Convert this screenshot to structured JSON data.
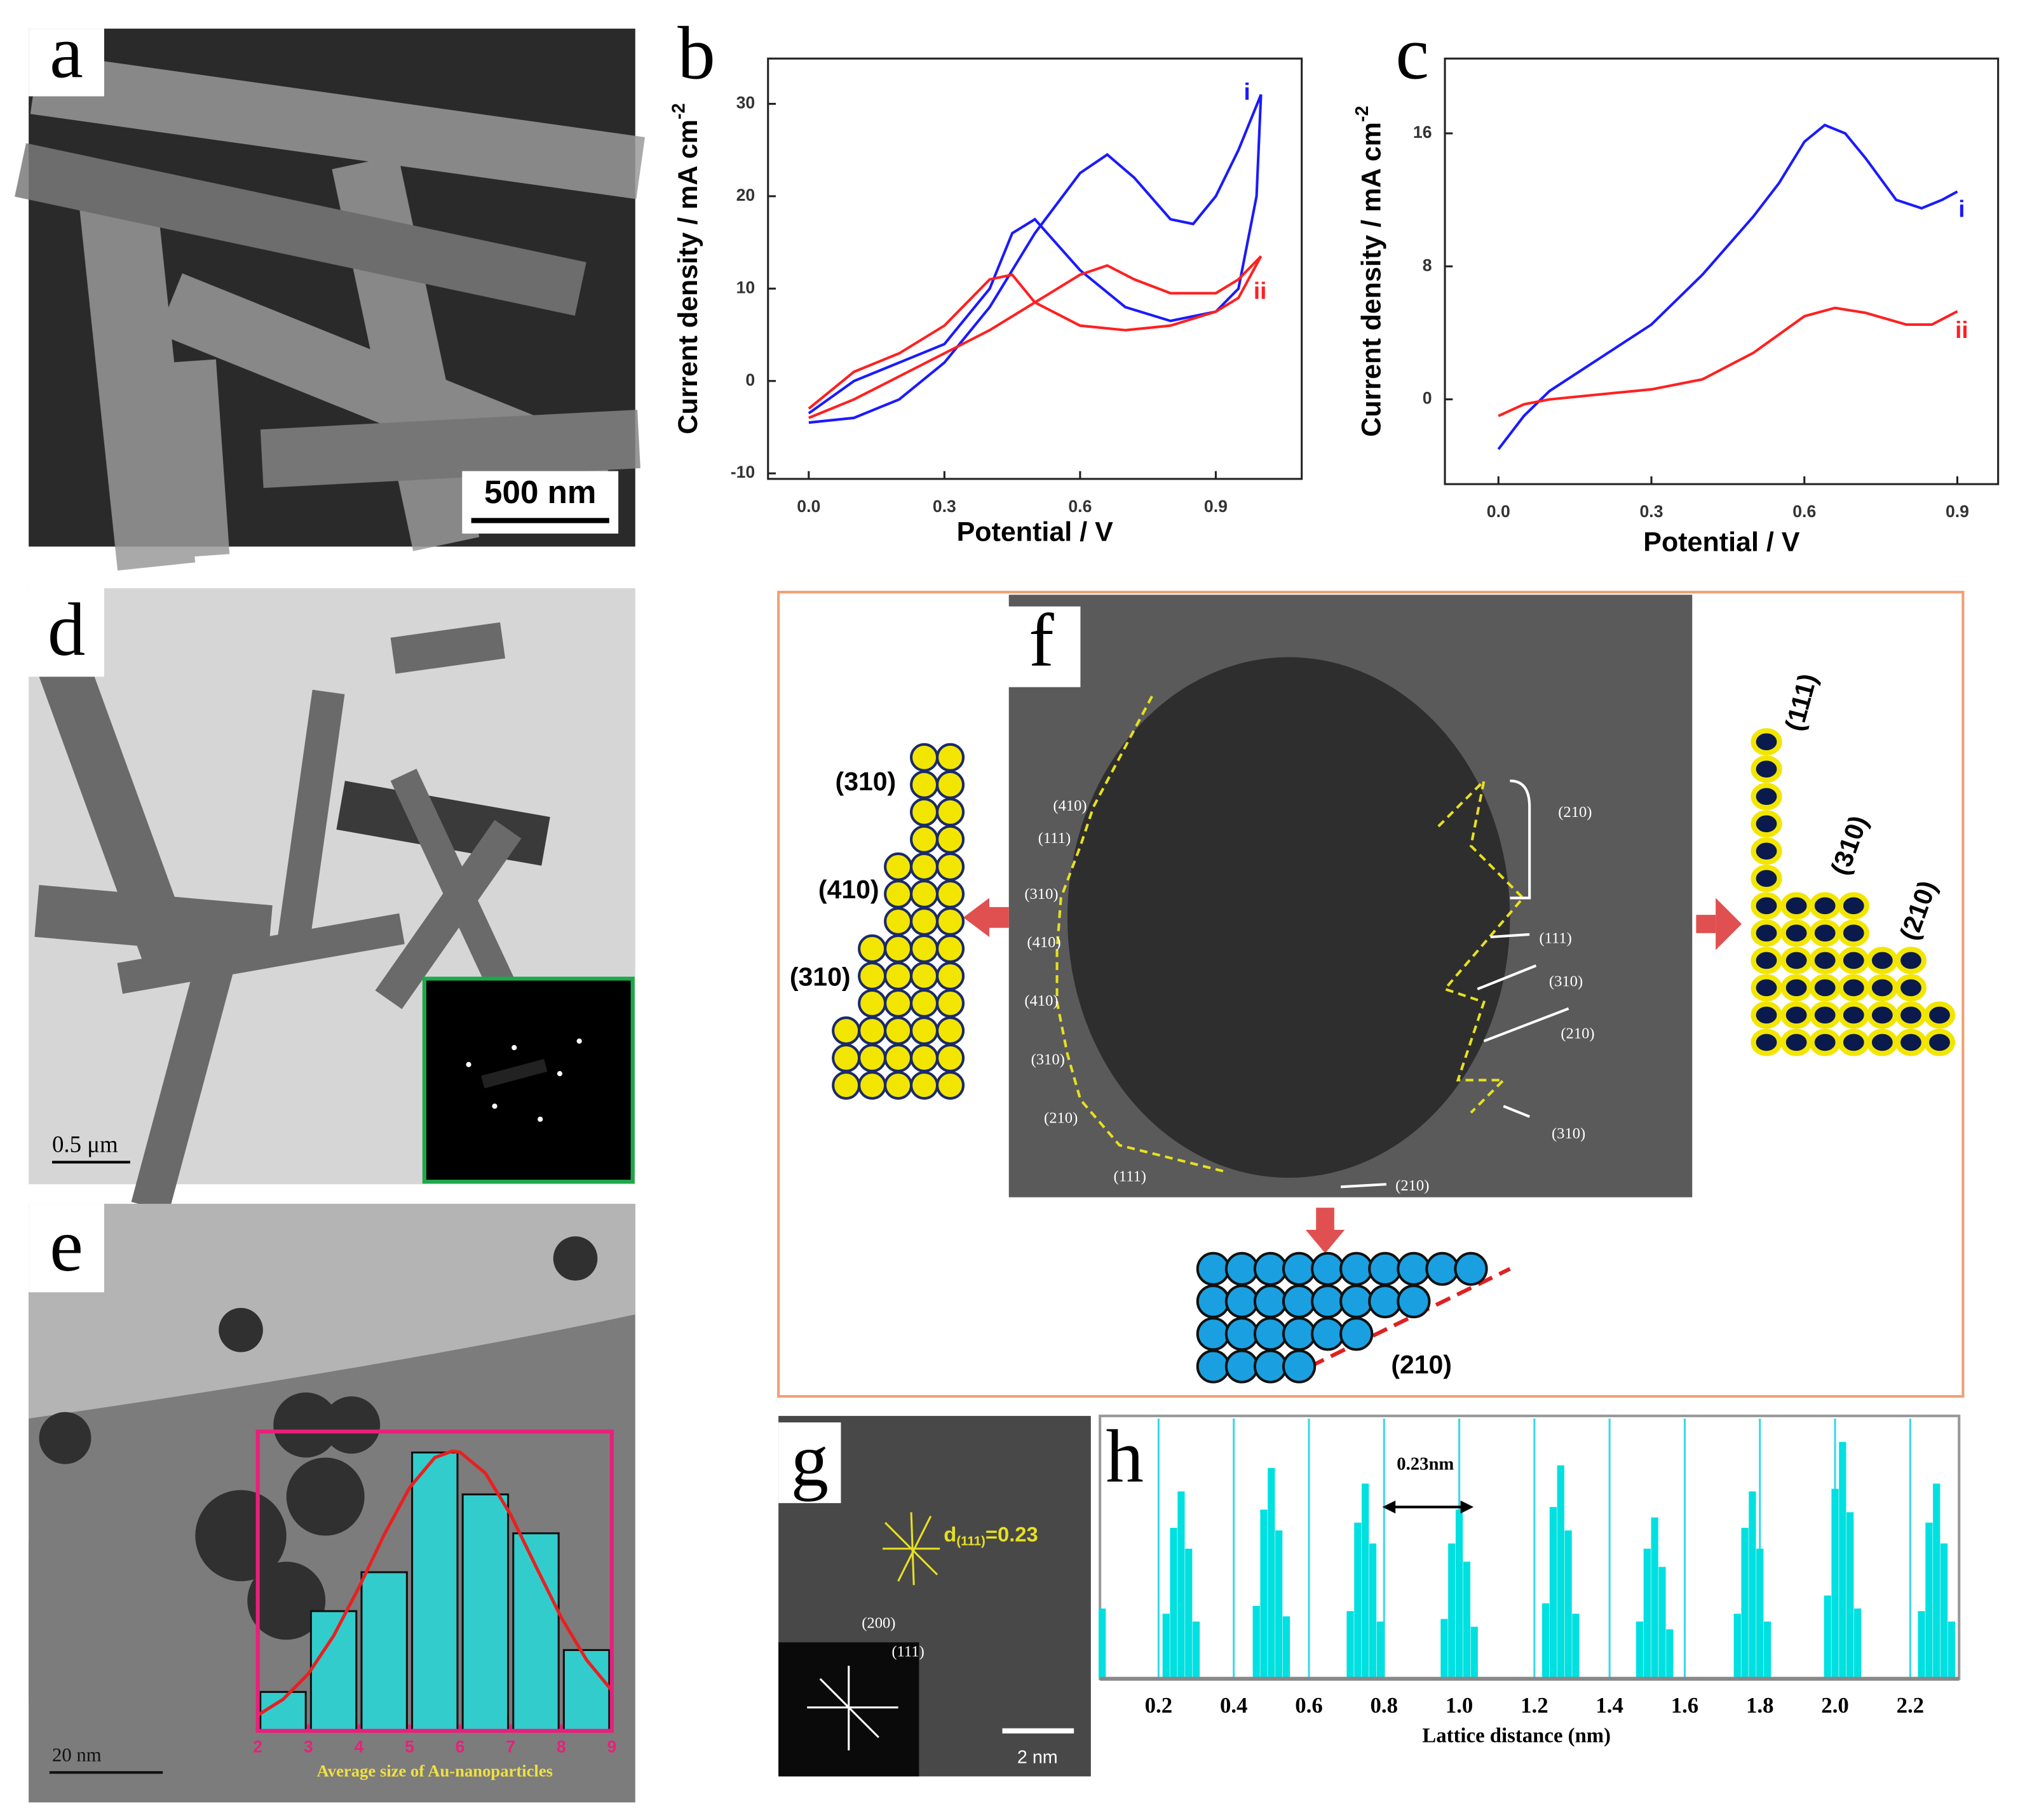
{
  "panels": {
    "a": {
      "label": "a",
      "scale": "500 nm"
    },
    "b": {
      "label": "b"
    },
    "c": {
      "label": "c"
    },
    "d": {
      "label": "d",
      "scale": "0.5 μm"
    },
    "e": {
      "label": "e",
      "scale": "20 nm"
    },
    "f": {
      "label": "f",
      "image_labels": [
        "(410)",
        "(111)",
        "(310)",
        "(410)",
        "(410)",
        "(310)",
        "(210)",
        "(111)",
        "(210)",
        "(111)",
        "(310)",
        "(210)",
        "(310)",
        "(210)"
      ],
      "left_model": [
        "(310)",
        "(410)",
        "(310)"
      ],
      "right_model": [
        "(111)",
        "(310)",
        "(210)"
      ],
      "bottom_model": "(210)"
    },
    "g": {
      "label": "g",
      "d": "d",
      "d_sub": "(111)",
      "d_rest": "=0.23",
      "fft_labels": [
        "(200)",
        "(111)"
      ],
      "scale": "2 nm"
    },
    "h": {
      "label": "h"
    }
  },
  "chart_data": [
    {
      "type": "line",
      "xlabel": "Potential / V",
      "ylabel": "Current density / mA cm",
      "ylabel_sup": "-2",
      "xlim": [
        -0.09,
        1.09
      ],
      "ylim": [
        -10.6,
        34.9
      ],
      "xticks": [
        {
          "value": 0,
          "label": "0.0"
        },
        0.3,
        0.6,
        0.9
      ],
      "yticks": [
        -10,
        0,
        10,
        20,
        30
      ],
      "series": [
        {
          "name": "i",
          "color": "#1a1aff",
          "x": [
            0,
            0.1,
            0.2,
            0.3,
            0.4,
            0.5,
            0.6,
            0.66,
            0.72,
            0.8,
            0.85,
            0.9,
            0.95,
            1.0,
            0.99,
            0.95,
            0.9,
            0.8,
            0.7,
            0.6,
            0.5,
            0.45,
            0.4,
            0.3,
            0.2,
            0.1,
            0.0
          ],
          "values": [
            -4.5,
            -4,
            -2,
            2,
            8,
            16,
            22.5,
            24.5,
            22,
            17.5,
            17,
            20,
            25,
            31,
            20,
            10,
            7.5,
            6.5,
            8,
            12,
            17.5,
            16,
            10,
            4,
            2,
            0,
            -3.5
          ]
        },
        {
          "name": "ii",
          "color": "#ff2020",
          "x": [
            0,
            0.1,
            0.2,
            0.3,
            0.4,
            0.5,
            0.6,
            0.66,
            0.72,
            0.8,
            0.9,
            0.95,
            1.0,
            0.95,
            0.9,
            0.8,
            0.7,
            0.6,
            0.5,
            0.45,
            0.4,
            0.3,
            0.2,
            0.1,
            0.0
          ],
          "values": [
            -4,
            -2,
            0.5,
            3,
            5.5,
            8.5,
            11.5,
            12.5,
            11,
            9.5,
            9.5,
            11,
            13.5,
            9,
            7.5,
            6,
            5.5,
            6,
            8.5,
            11.5,
            11,
            6,
            3,
            1,
            -3
          ]
        }
      ]
    },
    {
      "type": "line",
      "xlabel": "Potential / V",
      "ylabel": "Current density / mA cm",
      "ylabel_sup": "-2",
      "xlim": [
        -0.105,
        0.98
      ],
      "ylim": [
        -5.1,
        20.5
      ],
      "xticks": [
        {
          "value": 0,
          "label": "0.0"
        },
        0.3,
        0.6,
        0.9
      ],
      "yticks": [
        0,
        8,
        16
      ],
      "series": [
        {
          "name": "i",
          "color": "#1a1aff",
          "x": [
            0,
            0.05,
            0.1,
            0.2,
            0.3,
            0.4,
            0.5,
            0.55,
            0.6,
            0.64,
            0.68,
            0.72,
            0.78,
            0.83,
            0.87,
            0.9
          ],
          "values": [
            -3,
            -1,
            0.5,
            2.5,
            4.5,
            7.5,
            11,
            13,
            15.5,
            16.5,
            16,
            14.5,
            12,
            11.5,
            12,
            12.5
          ]
        },
        {
          "name": "ii",
          "color": "#ff2020",
          "x": [
            0,
            0.05,
            0.1,
            0.2,
            0.3,
            0.4,
            0.5,
            0.6,
            0.66,
            0.72,
            0.8,
            0.85,
            0.9
          ],
          "values": [
            -1,
            -0.3,
            0,
            0.3,
            0.6,
            1.2,
            2.8,
            5,
            5.5,
            5.2,
            4.5,
            4.5,
            5.3
          ]
        }
      ]
    },
    {
      "type": "histogram",
      "xlabel": "Average size of Au-nanoparticles",
      "bins": [
        2,
        3,
        4,
        5,
        6,
        7,
        8,
        9
      ],
      "counts": [
        13,
        40,
        53,
        93,
        79,
        66,
        27
      ],
      "color": "#33cccc",
      "xlim": [
        2,
        9
      ],
      "ylim": [
        0,
        100
      ],
      "xticks": [
        2,
        3,
        4,
        5,
        6,
        7,
        8,
        9
      ],
      "fit": {
        "color": "#e82020",
        "x": [
          2,
          2.5,
          3,
          3.5,
          4,
          4.5,
          5,
          5.5,
          5.85,
          6,
          6.5,
          7,
          7.5,
          8,
          8.5,
          9
        ],
        "values": [
          5.2,
          10.5,
          19.1,
          31.8,
          47.9,
          65.5,
          81.2,
          91.3,
          93.5,
          93.1,
          86.1,
          72.2,
          54.9,
          37.9,
          23.7,
          13.5
        ]
      }
    },
    {
      "type": "bar",
      "xlabel": "Lattice distance (nm)",
      "annotation": "0.23nm",
      "color": "#00e0e0",
      "grid": true,
      "xlim": [
        0.044,
        2.33
      ],
      "ylim": [
        0,
        100
      ],
      "xticks": [
        0.2,
        0.4,
        0.6,
        0.8,
        {
          "value": 1,
          "label": "1.0"
        },
        1.2,
        1.4,
        1.6,
        1.8,
        {
          "value": 2,
          "label": "2.0"
        },
        2.2
      ],
      "x": [
        0.05,
        0.22,
        0.24,
        0.26,
        0.28,
        0.3,
        0.46,
        0.48,
        0.5,
        0.52,
        0.54,
        0.71,
        0.73,
        0.75,
        0.77,
        0.79,
        0.96,
        0.98,
        1.0,
        1.02,
        1.04,
        1.23,
        1.25,
        1.27,
        1.29,
        1.31,
        1.48,
        1.5,
        1.52,
        1.54,
        1.56,
        1.74,
        1.76,
        1.78,
        1.8,
        1.82,
        1.98,
        2.0,
        2.02,
        2.04,
        2.06,
        2.23,
        2.25,
        2.27,
        2.29,
        2.31
      ],
      "values": [
        27,
        25,
        58,
        72,
        50,
        22,
        28,
        65,
        81,
        57,
        24,
        26,
        60,
        75,
        52,
        22,
        23,
        52,
        65,
        45,
        20,
        29,
        66,
        82,
        57,
        25,
        22,
        50,
        62,
        43,
        19,
        25,
        58,
        72,
        50,
        22,
        32,
        73,
        91,
        64,
        27,
        26,
        60,
        75,
        52,
        22
      ]
    }
  ]
}
